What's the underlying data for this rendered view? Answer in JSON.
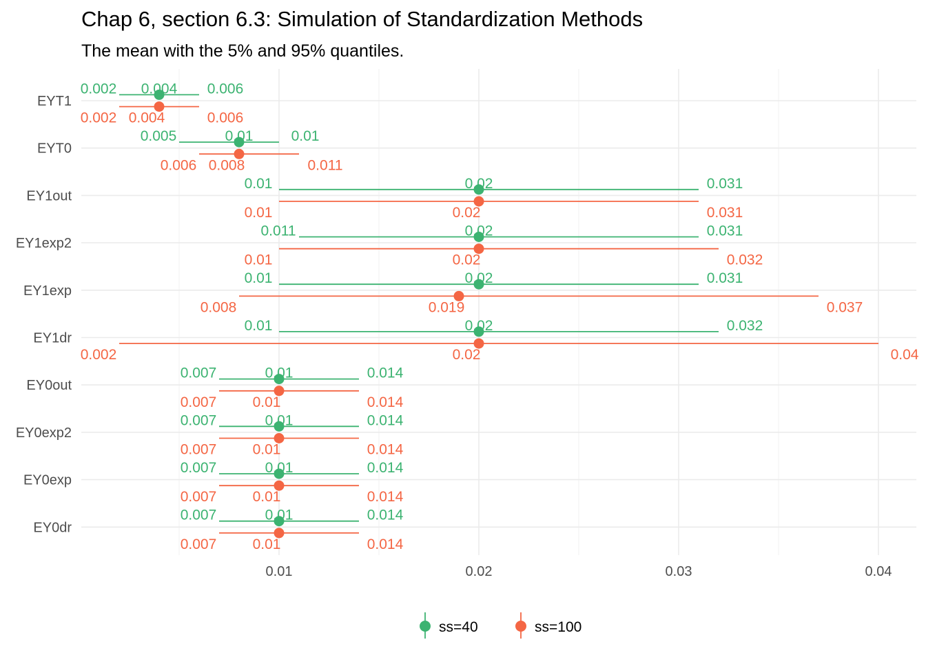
{
  "chart_data": {
    "type": "errorbar",
    "title": "Chap 6, section 6.3: Simulation of Standardization Methods",
    "subtitle": "The mean with the 5% and 95% quantiles.",
    "xlabel": "",
    "ylabel": "",
    "xlim": [
      0,
      0.0415
    ],
    "x_ticks": [
      0.01,
      0.02,
      0.03,
      0.04
    ],
    "x_tick_labels": [
      "0.01",
      "0.02",
      "0.03",
      "0.04"
    ],
    "grid": true,
    "legend_position": "bottom",
    "categories": [
      "EYT1",
      "EYT0",
      "EY1out",
      "EY1exp2",
      "EY1exp",
      "EY1dr",
      "EY0out",
      "EY0exp2",
      "EY0exp",
      "EY0dr"
    ],
    "series": [
      {
        "name": "ss=40",
        "color": "#3CB371",
        "mean": [
          0.004,
          0.008,
          0.02,
          0.02,
          0.02,
          0.02,
          0.01,
          0.01,
          0.01,
          0.01
        ],
        "lower": [
          0.002,
          0.005,
          0.01,
          0.011,
          0.01,
          0.01,
          0.007,
          0.007,
          0.007,
          0.007
        ],
        "upper": [
          0.006,
          0.01,
          0.031,
          0.031,
          0.031,
          0.032,
          0.014,
          0.014,
          0.014,
          0.014
        ],
        "mean_label": [
          "0.004",
          "0.01",
          "0.02",
          "0.02",
          "0.02",
          "0.02",
          "0.01",
          "0.01",
          "0.01",
          "0.01"
        ],
        "lower_label": [
          "0.002",
          "0.005",
          "0.01",
          "0.011",
          "0.01",
          "0.01",
          "0.007",
          "0.007",
          "0.007",
          "0.007"
        ],
        "upper_label": [
          "0.006",
          "0.01",
          "0.031",
          "0.031",
          "0.031",
          "0.032",
          "0.014",
          "0.014",
          "0.014",
          "0.014"
        ]
      },
      {
        "name": "ss=100",
        "color": "#F46644",
        "mean": [
          0.004,
          0.008,
          0.02,
          0.02,
          0.019,
          0.02,
          0.01,
          0.01,
          0.01,
          0.01
        ],
        "lower": [
          0.002,
          0.006,
          0.01,
          0.01,
          0.008,
          0.002,
          0.007,
          0.007,
          0.007,
          0.007
        ],
        "upper": [
          0.006,
          0.011,
          0.031,
          0.032,
          0.037,
          0.04,
          0.014,
          0.014,
          0.014,
          0.014
        ],
        "mean_label": [
          "0.004",
          "0.008",
          "0.02",
          "0.02",
          "0.019",
          "0.02",
          "0.01",
          "0.01",
          "0.01",
          "0.01"
        ],
        "lower_label": [
          "0.002",
          "0.006",
          "0.01",
          "0.01",
          "0.008",
          "0.002",
          "0.007",
          "0.007",
          "0.007",
          "0.007"
        ],
        "upper_label": [
          "0.006",
          "0.011",
          "0.031",
          "0.032",
          "0.037",
          "0.04",
          "0.014",
          "0.014",
          "0.014",
          "0.014"
        ]
      }
    ]
  }
}
